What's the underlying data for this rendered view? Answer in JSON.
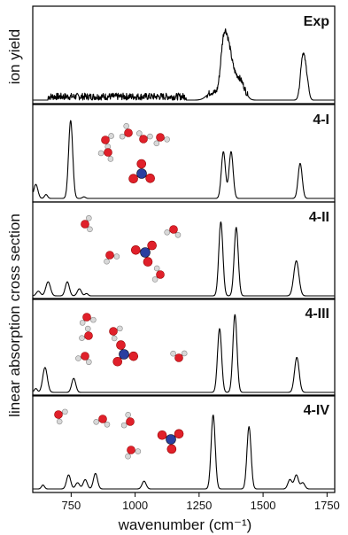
{
  "chart_data": {
    "type": "line",
    "xlabel": "wavenumber (cm⁻¹)",
    "ylabels": {
      "top": "ion yield",
      "bottom": "linear absorption cross section"
    },
    "xlim": [
      600,
      1780
    ],
    "xticks": [
      "750",
      "1000",
      "1250",
      "1500",
      "1750"
    ],
    "xtick_values": [
      750,
      1000,
      1250,
      1500,
      1750
    ],
    "grid": false,
    "panels": [
      {
        "label": "Exp",
        "kind": "experimental",
        "noise_region": [
          660,
          1200
        ],
        "peaks": [
          {
            "x": 1345,
            "height": 0.62,
            "width": 12
          },
          {
            "x": 1365,
            "height": 0.55,
            "width": 14
          },
          {
            "x": 1395,
            "height": 0.25,
            "width": 18
          },
          {
            "x": 1420,
            "height": 0.12,
            "width": 15
          },
          {
            "x": 1300,
            "height": 0.1,
            "width": 20
          },
          {
            "x": 1655,
            "height": 0.55,
            "width": 9
          },
          {
            "x": 1670,
            "height": 0.25,
            "width": 8
          }
        ]
      },
      {
        "label": "4-I",
        "kind": "computed",
        "peaks": [
          {
            "x": 612,
            "height": 0.18,
            "width": 8
          },
          {
            "x": 652,
            "height": 0.05,
            "width": 6
          },
          {
            "x": 748,
            "height": 1.0,
            "width": 8
          },
          {
            "x": 800,
            "height": 0.02,
            "width": 6
          },
          {
            "x": 1345,
            "height": 0.6,
            "width": 8
          },
          {
            "x": 1375,
            "height": 0.6,
            "width": 8
          },
          {
            "x": 1645,
            "height": 0.45,
            "width": 8
          }
        ]
      },
      {
        "label": "4-II",
        "kind": "computed",
        "peaks": [
          {
            "x": 622,
            "height": 0.06,
            "width": 8
          },
          {
            "x": 660,
            "height": 0.18,
            "width": 9
          },
          {
            "x": 735,
            "height": 0.18,
            "width": 8
          },
          {
            "x": 782,
            "height": 0.09,
            "width": 8
          },
          {
            "x": 810,
            "height": 0.03,
            "width": 6
          },
          {
            "x": 1335,
            "height": 0.95,
            "width": 8
          },
          {
            "x": 1395,
            "height": 0.88,
            "width": 8
          },
          {
            "x": 1630,
            "height": 0.45,
            "width": 10
          }
        ]
      },
      {
        "label": "4-III",
        "kind": "computed",
        "peaks": [
          {
            "x": 612,
            "height": 0.05,
            "width": 6
          },
          {
            "x": 648,
            "height": 0.32,
            "width": 9
          },
          {
            "x": 760,
            "height": 0.18,
            "width": 8
          },
          {
            "x": 1330,
            "height": 0.82,
            "width": 8
          },
          {
            "x": 1390,
            "height": 1.0,
            "width": 8
          },
          {
            "x": 1632,
            "height": 0.45,
            "width": 9
          }
        ]
      },
      {
        "label": "4-IV",
        "kind": "computed",
        "peaks": [
          {
            "x": 640,
            "height": 0.05,
            "width": 6
          },
          {
            "x": 740,
            "height": 0.18,
            "width": 8
          },
          {
            "x": 775,
            "height": 0.08,
            "width": 8
          },
          {
            "x": 805,
            "height": 0.12,
            "width": 8
          },
          {
            "x": 845,
            "height": 0.2,
            "width": 8
          },
          {
            "x": 1035,
            "height": 0.1,
            "width": 8
          },
          {
            "x": 1305,
            "height": 0.95,
            "width": 8
          },
          {
            "x": 1445,
            "height": 0.8,
            "width": 8
          },
          {
            "x": 1605,
            "height": 0.12,
            "width": 8
          },
          {
            "x": 1630,
            "height": 0.18,
            "width": 8
          },
          {
            "x": 1655,
            "height": 0.08,
            "width": 8
          }
        ]
      }
    ]
  },
  "molecule_colors": {
    "oxygen": "#e0202a",
    "hydrogen": "#d8d8d8",
    "nitrogen": "#2a3fa0",
    "bond": "#999999"
  }
}
